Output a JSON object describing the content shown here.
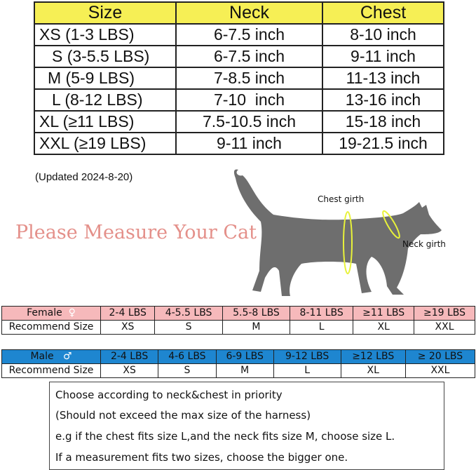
{
  "size_chart": {
    "headers": [
      "Size",
      "Neck",
      "Chest"
    ],
    "rows": [
      [
        "XS (1-3 LBS)",
        "6-7.5 inch",
        "8-10 inch"
      ],
      [
        "S (3-5.5 LBS)",
        "6-7.5 inch",
        "9-11 inch"
      ],
      [
        "M (5-9 LBS)",
        "7-8.5 inch",
        "11-13 inch"
      ],
      [
        "L (8-12 LBS)",
        "7-10  inch",
        "13-16 inch"
      ],
      [
        "XL (≥11 LBS)",
        "7.5-10.5 inch",
        "15-18 inch"
      ],
      [
        "XXL (≥19 LBS)",
        "9-11 inch",
        "19-21.5 inch"
      ]
    ]
  },
  "updated_note": "(Updated 2024-8-20)",
  "measure_title": "Please Measure Your Cat",
  "diagram": {
    "chest_label": "Chest girth",
    "neck_label": "Neck girth",
    "body_color": "#6e6e6e",
    "girth_color": "#e8f23a"
  },
  "female": {
    "label": "Female",
    "symbol": "♀",
    "color": "#f6b9bb",
    "weights": [
      "2-4 LBS",
      "4-5.5 LBS",
      "5.5-8 LBS",
      "8-11 LBS",
      "≥11 LBS",
      "≥19 LBS"
    ],
    "rec_label": "Recommend Size",
    "sizes": [
      "XS",
      "S",
      "M",
      "L",
      "XL",
      "XXL"
    ]
  },
  "male": {
    "label": "Male",
    "symbol": "♂",
    "color": "#1e86d0",
    "weights": [
      "2-4 LBS",
      "4-6 LBS",
      "6-9 LBS",
      "9-12 LBS",
      "≥12 LBS",
      "≥ 20 LBS"
    ],
    "rec_label": "Recommend Size",
    "sizes": [
      "XS",
      "S",
      "M",
      "L",
      "XL",
      "XXL"
    ]
  },
  "tips": [
    "Choose according to neck&chest in priority",
    "(Should not exceed the max size of the harness)",
    "e.g if the chest fits size L,and the neck fits size M, choose size L.",
    "If a measurement fits two sizes, choose the bigger one."
  ]
}
